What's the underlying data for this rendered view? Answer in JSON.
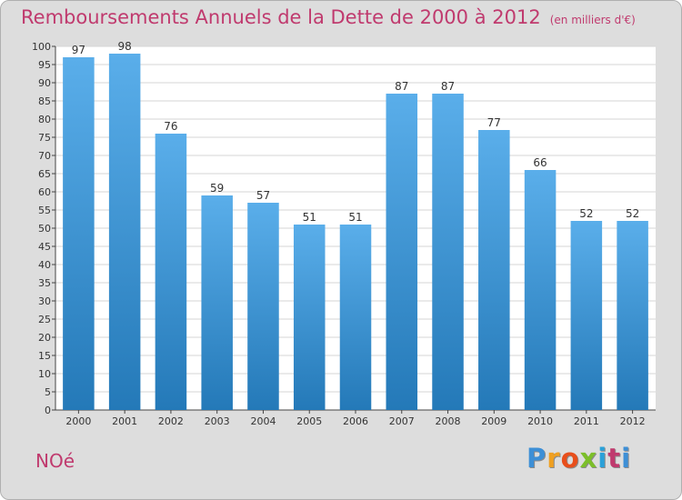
{
  "header": {
    "title": "Remboursements Annuels de la Dette de 2000 à 2012",
    "unit": "(en milliers d'€)"
  },
  "footer": {
    "commune": "NOé",
    "logo_letters": [
      "P",
      "r",
      "o",
      "x",
      "i",
      "t",
      "i"
    ]
  },
  "colors": {
    "title": "#c03a6e",
    "bar_light": "#5aaeea",
    "bar_dark": "#2479b8",
    "background": "#dddddd",
    "plot_background": "#ffffff",
    "grid": "#d6d6d6"
  },
  "chart_data": {
    "type": "bar",
    "title": "Remboursements Annuels de la Dette de 2000 à 2012",
    "subtitle": "(en milliers d'€)",
    "xlabel": "",
    "ylabel": "",
    "categories": [
      "2000",
      "2001",
      "2002",
      "2003",
      "2004",
      "2005",
      "2006",
      "2007",
      "2008",
      "2009",
      "2010",
      "2011",
      "2012"
    ],
    "values": [
      97,
      98,
      76,
      59,
      57,
      51,
      51,
      87,
      87,
      77,
      66,
      52,
      52
    ],
    "ylim": [
      0,
      100
    ],
    "ytick_step": 5,
    "grid": true,
    "data_labels": true
  }
}
